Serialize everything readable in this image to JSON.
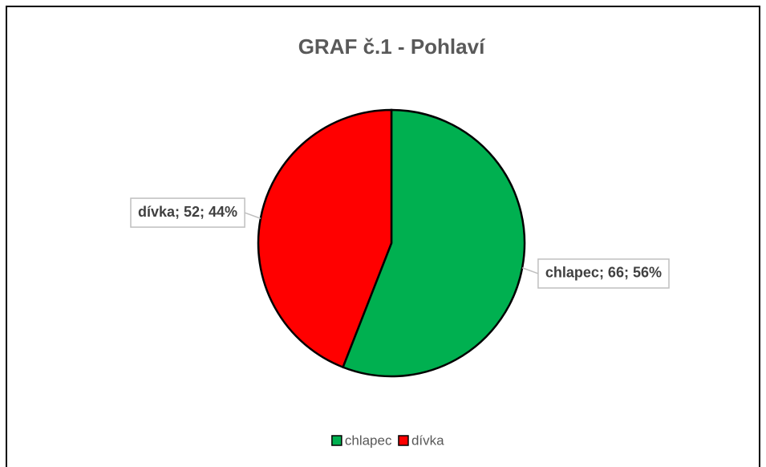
{
  "chart_data": {
    "type": "pie",
    "title": "GRAF č.1 - Pohlaví",
    "categories": [
      "chlapec",
      "dívka"
    ],
    "values": [
      66,
      52
    ],
    "value_labels": [
      "chlapec; 66; 56%",
      "dívka; 52; 44%"
    ],
    "colors": [
      "#00b050",
      "#ff0000"
    ],
    "legend": "bottom"
  }
}
